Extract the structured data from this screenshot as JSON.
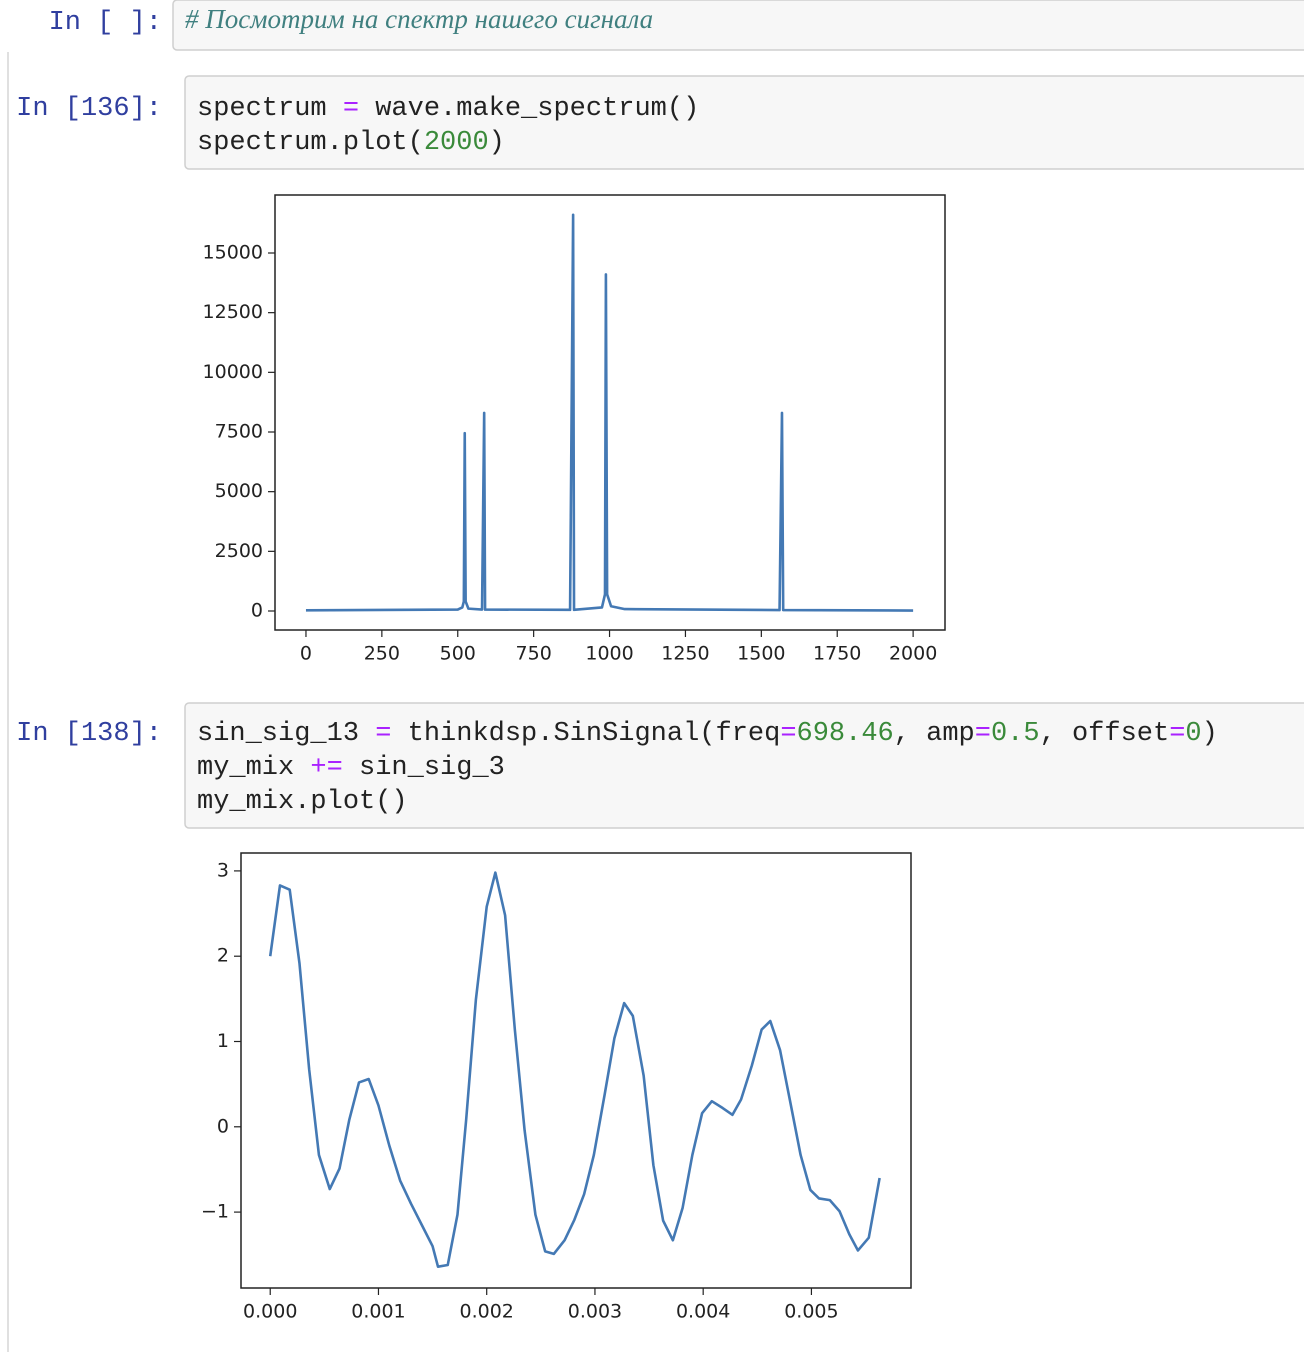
{
  "cells": [
    {
      "prompt": "In [ ]:",
      "code": [
        "# Посмотрим на спектр нашего сигнала"
      ]
    },
    {
      "prompt": "In [136]:",
      "code": [
        "spectrum = wave.make_spectrum()",
        "spectrum.plot(2000)"
      ],
      "output": {
        "chart_data": {
          "type": "line",
          "color": "#4479b4",
          "x": [
            0,
            500,
            515,
            520,
            523,
            526,
            535,
            580,
            587,
            590,
            870,
            880,
            883,
            975,
            985,
            988,
            992,
            1005,
            1050,
            1560,
            1568,
            1572,
            2000
          ],
          "values": [
            30,
            60,
            150,
            400,
            7450,
            400,
            100,
            60,
            8300,
            60,
            50,
            16600,
            50,
            150,
            700,
            14100,
            700,
            200,
            80,
            40,
            8300,
            40,
            20
          ],
          "xlim": [
            -102,
            2105
          ],
          "ylim": [
            -796,
            17430
          ],
          "xticks": [
            0,
            250,
            500,
            750,
            1000,
            1250,
            1500,
            1750,
            2000
          ],
          "yticks": [
            0,
            2500,
            5000,
            7500,
            10000,
            12500,
            15000
          ]
        }
      }
    },
    {
      "prompt": "In [138]:",
      "code": [
        "sin_sig_13 = thinkdsp.SinSignal(freq=698.46, amp=0.5, offset=0)",
        "my_mix += sin_sig_3",
        "my_mix.plot()"
      ],
      "output": {
        "chart_data": {
          "type": "line",
          "color": "#4479b4",
          "x": [
            0,
            9e-05,
            0.00018,
            0.00027,
            0.00036,
            0.00045,
            0.00055,
            0.00064,
            0.00073,
            0.00082,
            0.00091,
            0.001,
            0.0011,
            0.0012,
            0.0013,
            0.0014,
            0.0015,
            0.00155,
            0.00164,
            0.00173,
            0.00181,
            0.0019,
            0.002,
            0.00208,
            0.00217,
            0.00226,
            0.00235,
            0.00245,
            0.00254,
            0.00262,
            0.00272,
            0.00281,
            0.0029,
            0.00299,
            0.00309,
            0.00318,
            0.00327,
            0.00335,
            0.00345,
            0.00354,
            0.00363,
            0.00372,
            0.00381,
            0.0039,
            0.00399,
            0.00408,
            0.00418,
            0.00427,
            0.00435,
            0.00445,
            0.00454,
            0.00462,
            0.00471,
            0.0048,
            0.0049,
            0.00499,
            0.00507,
            0.00517,
            0.00526,
            0.00535,
            0.00543,
            0.00553,
            0.00563
          ],
          "values": [
            2.0,
            2.83,
            2.78,
            1.92,
            0.67,
            -0.33,
            -0.73,
            -0.49,
            0.08,
            0.52,
            0.56,
            0.25,
            -0.22,
            -0.63,
            -0.9,
            -1.15,
            -1.4,
            -1.64,
            -1.62,
            -1.03,
            0.08,
            1.49,
            2.58,
            2.98,
            2.48,
            1.14,
            -0.04,
            -1.03,
            -1.46,
            -1.49,
            -1.33,
            -1.09,
            -0.79,
            -0.33,
            0.38,
            1.04,
            1.45,
            1.3,
            0.6,
            -0.45,
            -1.1,
            -1.33,
            -0.95,
            -0.33,
            0.16,
            0.3,
            0.22,
            0.14,
            0.32,
            0.72,
            1.14,
            1.24,
            0.9,
            0.32,
            -0.33,
            -0.74,
            -0.84,
            -0.86,
            -0.99,
            -1.26,
            -1.45,
            -1.3,
            -0.6
          ],
          "xlim": [
            -0.00027,
            0.00592
          ],
          "ylim": [
            -1.89,
            3.21
          ],
          "xticks": [
            {
              "value": 0,
              "label": "0.000"
            },
            {
              "value": 0.001,
              "label": "0.001"
            },
            {
              "value": 0.002,
              "label": "0.002"
            },
            {
              "value": 0.003,
              "label": "0.003"
            },
            {
              "value": 0.004,
              "label": "0.004"
            },
            {
              "value": 0.005,
              "label": "0.005"
            }
          ],
          "yticks": [
            {
              "value": -1,
              "label": "−1"
            },
            0,
            1,
            2,
            3
          ]
        }
      }
    }
  ]
}
